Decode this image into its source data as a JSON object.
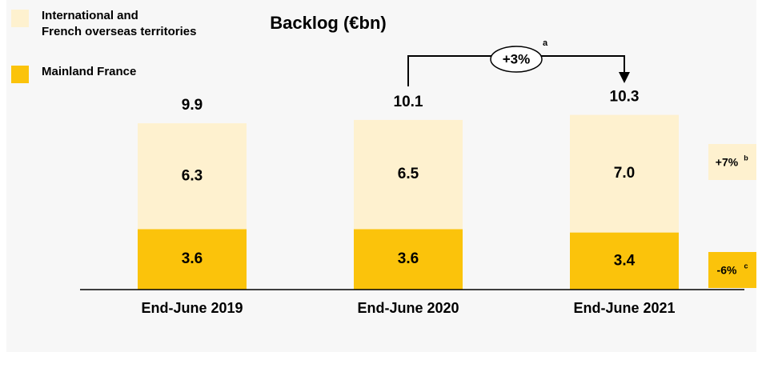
{
  "chart_data": {
    "type": "bar",
    "stacked": true,
    "title": "Backlog (€bn)",
    "categories": [
      "End-June 2019",
      "End-June 2020",
      "End-June 2021"
    ],
    "series": [
      {
        "name": "Mainland France",
        "color": "#FBC30B",
        "values": [
          3.6,
          3.6,
          3.4
        ]
      },
      {
        "name": "International and\nFrench overseas territories",
        "color": "#FEF1CF",
        "values": [
          6.3,
          6.5,
          7.0
        ],
        "value_labels": [
          "6.3",
          "6.5",
          "7.0"
        ]
      }
    ],
    "totals": [
      9.9,
      10.1,
      10.3
    ],
    "annotations": [
      {
        "text": "+3%",
        "note": "a"
      },
      {
        "text": "+7%",
        "note": "b"
      },
      {
        "text": "-6%",
        "note": "c"
      }
    ]
  }
}
